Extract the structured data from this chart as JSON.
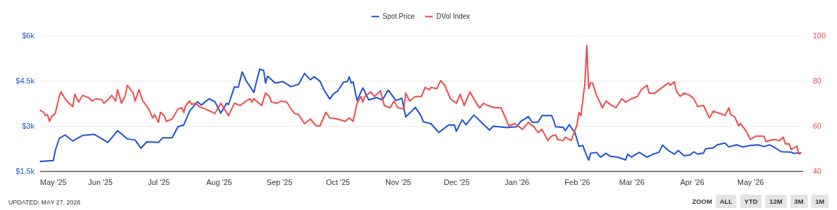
{
  "chart_data": {
    "type": "line",
    "xlim": [
      "2025-05-01",
      "2026-05-28"
    ],
    "xticks": [
      {
        "value": "2025-05-01",
        "label": "May '25"
      },
      {
        "value": "2025-06-01",
        "label": "Jun '25"
      },
      {
        "value": "2025-07-01",
        "label": "Jul '25"
      },
      {
        "value": "2025-08-01",
        "label": "Aug '25"
      },
      {
        "value": "2025-09-01",
        "label": "Sep '25"
      },
      {
        "value": "2025-10-01",
        "label": "Oct '25"
      },
      {
        "value": "2025-11-01",
        "label": "Nov '25"
      },
      {
        "value": "2025-12-01",
        "label": "Dec '25"
      },
      {
        "value": "2026-01-01",
        "label": "Jan '26"
      },
      {
        "value": "2026-02-01",
        "label": "Feb '26"
      },
      {
        "value": "2026-03-01",
        "label": "Mar '26"
      },
      {
        "value": "2026-04-01",
        "label": "Apr '26"
      },
      {
        "value": "2026-05-01",
        "label": "May '26"
      }
    ],
    "ylim": [
      1500,
      6000
    ],
    "yticks": [
      {
        "value": 1500,
        "label": "$1.5k"
      },
      {
        "value": 3000,
        "label": "$3k"
      },
      {
        "value": 4500,
        "label": "$4.5k"
      },
      {
        "value": 6000,
        "label": "$6k"
      }
    ],
    "y2lim": [
      40,
      100
    ],
    "y2ticks": [
      40,
      60,
      80,
      100
    ],
    "grid": "y",
    "legend": "top",
    "marker": "none",
    "line_style": "solid",
    "annotations": [
      "UPDATED: MAY 27, 2026",
      "ZOOM",
      "ALL",
      "YTD",
      "12M",
      "3M",
      "1M"
    ],
    "series": [
      {
        "name": "Spot Price",
        "color": "#1a4fd6",
        "x": [
          "2025-05-01",
          "2025-05-08",
          "2025-05-09",
          "2025-05-11",
          "2025-05-14",
          "2025-05-18",
          "2025-05-23",
          "2025-05-29",
          "2025-06-05",
          "2025-06-10",
          "2025-06-15",
          "2025-06-19",
          "2025-06-22",
          "2025-06-25",
          "2025-07-01",
          "2025-07-03",
          "2025-07-08",
          "2025-07-11",
          "2025-07-14",
          "2025-07-17",
          "2025-07-21",
          "2025-07-23",
          "2025-07-27",
          "2025-07-30",
          "2025-08-02",
          "2025-08-05",
          "2025-08-06",
          "2025-08-09",
          "2025-08-11",
          "2025-08-13",
          "2025-08-15",
          "2025-08-19",
          "2025-08-20",
          "2025-08-22",
          "2025-08-24",
          "2025-08-25",
          "2025-08-26",
          "2025-08-30",
          "2025-09-03",
          "2025-09-07",
          "2025-09-11",
          "2025-09-14",
          "2025-09-17",
          "2025-09-19",
          "2025-09-22",
          "2025-09-24",
          "2025-09-27",
          "2025-09-29",
          "2025-10-01",
          "2025-10-04",
          "2025-10-06",
          "2025-10-07",
          "2025-10-08",
          "2025-10-09",
          "2025-10-11",
          "2025-10-14",
          "2025-10-17",
          "2025-10-21",
          "2025-10-24",
          "2025-10-27",
          "2025-10-31",
          "2025-11-03",
          "2025-11-05",
          "2025-11-07",
          "2025-11-10",
          "2025-11-13",
          "2025-11-14",
          "2025-11-18",
          "2025-11-22",
          "2025-11-27",
          "2025-11-30",
          "2025-12-01",
          "2025-12-04",
          "2025-12-06",
          "2025-12-10",
          "2025-12-14",
          "2025-12-18",
          "2025-12-20",
          "2025-12-27",
          "2026-01-01",
          "2026-01-03",
          "2026-01-07",
          "2026-01-09",
          "2026-01-12",
          "2026-01-14",
          "2026-01-19",
          "2026-01-20",
          "2026-01-21",
          "2026-01-25",
          "2026-01-26",
          "2026-01-28",
          "2026-01-31",
          "2026-02-02",
          "2026-02-04",
          "2026-02-05",
          "2026-02-07",
          "2026-02-08",
          "2026-02-11",
          "2026-02-13",
          "2026-02-16",
          "2026-02-18",
          "2026-02-22",
          "2026-02-26",
          "2026-02-27",
          "2026-03-01",
          "2026-03-02",
          "2026-03-05",
          "2026-03-09",
          "2026-03-12",
          "2026-03-15",
          "2026-03-17",
          "2026-03-20",
          "2026-03-23",
          "2026-03-25",
          "2026-03-28",
          "2026-03-31",
          "2026-04-02",
          "2026-04-04",
          "2026-04-07",
          "2026-04-08",
          "2026-04-12",
          "2026-04-14",
          "2026-04-18",
          "2026-04-20",
          "2026-04-24",
          "2026-04-27",
          "2026-05-01",
          "2026-05-05",
          "2026-05-08",
          "2026-05-11",
          "2026-05-13",
          "2026-05-17",
          "2026-05-22",
          "2026-05-23",
          "2026-05-27"
        ],
        "values": [
          1820,
          1850,
          2180,
          2580,
          2700,
          2500,
          2680,
          2720,
          2450,
          2840,
          2570,
          2530,
          2260,
          2470,
          2450,
          2600,
          2600,
          2970,
          3030,
          3490,
          3800,
          3690,
          3900,
          3800,
          3420,
          3750,
          3710,
          4290,
          4280,
          4790,
          4500,
          4110,
          4380,
          4880,
          4840,
          4420,
          4650,
          4420,
          4470,
          4300,
          4380,
          4740,
          4530,
          4630,
          4480,
          4200,
          3890,
          4070,
          4150,
          4450,
          4470,
          4630,
          4420,
          4460,
          3840,
          4260,
          3860,
          3940,
          3860,
          4190,
          3840,
          3920,
          3300,
          3420,
          3610,
          3320,
          3140,
          3070,
          2780,
          3030,
          3030,
          2820,
          3200,
          3040,
          3360,
          3110,
          2860,
          2990,
          2940,
          2970,
          3140,
          3310,
          3120,
          3120,
          3340,
          3340,
          3180,
          2970,
          2950,
          2840,
          3040,
          2760,
          2320,
          2350,
          2160,
          1860,
          2090,
          2120,
          1960,
          2090,
          1990,
          1960,
          1870,
          2060,
          1960,
          2010,
          2120,
          1960,
          2060,
          2120,
          2360,
          2180,
          2060,
          2180,
          2010,
          2030,
          2140,
          2060,
          2100,
          2240,
          2270,
          2370,
          2430,
          2300,
          2370,
          2300,
          2350,
          2370,
          2310,
          2370,
          2300,
          2140,
          2130,
          2090,
          2100
        ]
      },
      {
        "name": "DVol Index",
        "color": "#f04848",
        "axis": "y2",
        "x": [
          "2025-05-01",
          "2025-05-03",
          "2025-05-04",
          "2025-05-05",
          "2025-05-06",
          "2025-05-07",
          "2025-05-09",
          "2025-05-11",
          "2025-05-12",
          "2025-05-14",
          "2025-05-16",
          "2025-05-18",
          "2025-05-19",
          "2025-05-21",
          "2025-05-23",
          "2025-05-26",
          "2025-05-28",
          "2025-05-30",
          "2025-06-02",
          "2025-06-03",
          "2025-06-05",
          "2025-06-07",
          "2025-06-09",
          "2025-06-10",
          "2025-06-12",
          "2025-06-14",
          "2025-06-15",
          "2025-06-18",
          "2025-06-19",
          "2025-06-21",
          "2025-06-23",
          "2025-06-26",
          "2025-06-28",
          "2025-06-29",
          "2025-07-01",
          "2025-07-02",
          "2025-07-04",
          "2025-07-05",
          "2025-07-08",
          "2025-07-11",
          "2025-07-13",
          "2025-07-14",
          "2025-07-15",
          "2025-07-17",
          "2025-07-18",
          "2025-07-20",
          "2025-07-22",
          "2025-07-25",
          "2025-07-30",
          "2025-08-02",
          "2025-08-06",
          "2025-08-09",
          "2025-08-12",
          "2025-08-15",
          "2025-08-17",
          "2025-08-18",
          "2025-08-19",
          "2025-08-23",
          "2025-08-25",
          "2025-08-27",
          "2025-08-28",
          "2025-08-31",
          "2025-09-02",
          "2025-09-05",
          "2025-09-07",
          "2025-09-09",
          "2025-09-11",
          "2025-09-14",
          "2025-09-17",
          "2025-09-20",
          "2025-09-22",
          "2025-09-24",
          "2025-09-25",
          "2025-09-27",
          "2025-10-01",
          "2025-10-05",
          "2025-10-07",
          "2025-10-09",
          "2025-10-11",
          "2025-10-13",
          "2025-10-14",
          "2025-10-15",
          "2025-10-18",
          "2025-10-20",
          "2025-10-23",
          "2025-10-25",
          "2025-10-28",
          "2025-10-30",
          "2025-11-01",
          "2025-11-04",
          "2025-11-05",
          "2025-11-07",
          "2025-11-10",
          "2025-11-13",
          "2025-11-15",
          "2025-11-17",
          "2025-11-18",
          "2025-11-21",
          "2025-11-23",
          "2025-11-25",
          "2025-11-28",
          "2025-12-01",
          "2025-12-03",
          "2025-12-05",
          "2025-12-07",
          "2025-12-08",
          "2025-12-12",
          "2025-12-13",
          "2025-12-15",
          "2025-12-17",
          "2025-12-21",
          "2025-12-24",
          "2025-12-28",
          "2025-12-31",
          "2026-01-04",
          "2026-01-07",
          "2026-01-10",
          "2026-01-12",
          "2026-01-14",
          "2026-01-17",
          "2026-01-19",
          "2026-01-21",
          "2026-01-22",
          "2026-01-25",
          "2026-01-26",
          "2026-01-29",
          "2026-02-01",
          "2026-02-02",
          "2026-02-03",
          "2026-02-05",
          "2026-02-06",
          "2026-02-07",
          "2026-02-08",
          "2026-02-09",
          "2026-02-11",
          "2026-02-13",
          "2026-02-14",
          "2026-02-16",
          "2026-02-18",
          "2026-02-21",
          "2026-02-24",
          "2026-02-26",
          "2026-03-01",
          "2026-03-04",
          "2026-03-06",
          "2026-03-09",
          "2026-03-10",
          "2026-03-13",
          "2026-03-16",
          "2026-03-20",
          "2026-03-21",
          "2026-03-23",
          "2026-03-24",
          "2026-03-26",
          "2026-03-28",
          "2026-03-31",
          "2026-04-02",
          "2026-04-04",
          "2026-04-07",
          "2026-04-10",
          "2026-04-12",
          "2026-04-17",
          "2026-04-18",
          "2026-04-20",
          "2026-04-21",
          "2026-04-23",
          "2026-04-25",
          "2026-04-26",
          "2026-04-29",
          "2026-05-01",
          "2026-05-04",
          "2026-05-08",
          "2026-05-09",
          "2026-05-13",
          "2026-05-16",
          "2026-05-18",
          "2026-05-19",
          "2026-05-21",
          "2026-05-22",
          "2026-05-25",
          "2026-05-26",
          "2026-05-27"
        ],
        "values": [
          67,
          66,
          64.5,
          65,
          62,
          64,
          65.5,
          73,
          75,
          72,
          70,
          68.5,
          74,
          70.5,
          73.5,
          72.5,
          71,
          72,
          71.5,
          70,
          71.5,
          73.5,
          71,
          76,
          70,
          73.5,
          78,
          74.5,
          71,
          76,
          71,
          67.5,
          63.5,
          65,
          61.5,
          66,
          64.5,
          62,
          63,
          67.5,
          68,
          66,
          69,
          71,
          69.5,
          70,
          68.5,
          67.5,
          65.5,
          70,
          64.5,
          70,
          69,
          71,
          72,
          70.5,
          72,
          69,
          74.5,
          73,
          70.5,
          70,
          71,
          70.5,
          67.5,
          65.5,
          65,
          61,
          63,
          60,
          60,
          64,
          66,
          63.5,
          63,
          62,
          63.5,
          62,
          70,
          73,
          70.5,
          73,
          75,
          73,
          75.5,
          69,
          68,
          71,
          68,
          67.5,
          74.5,
          71,
          73,
          73,
          77,
          76,
          77,
          76.5,
          80,
          78,
          72,
          70,
          74,
          69,
          73,
          75,
          69,
          68,
          70,
          69,
          68,
          68,
          60,
          61,
          58.5,
          61.5,
          59.5,
          57,
          58.5,
          53.5,
          55.5,
          56,
          54,
          53.5,
          55,
          53.5,
          60.5,
          66,
          64.5,
          78.5,
          95.5,
          76.5,
          79,
          79,
          73.5,
          70,
          68,
          71,
          69.5,
          68,
          72,
          70.5,
          72,
          73,
          76,
          78,
          74.5,
          74.5,
          76.5,
          79,
          78,
          79.5,
          75.5,
          73,
          74.5,
          73.5,
          72,
          68.5,
          69,
          63.5,
          66.5,
          65,
          64.5,
          68,
          65,
          64,
          60,
          61,
          57.5,
          54,
          55.5,
          55.5,
          53,
          54,
          53.5,
          55,
          52,
          52,
          49.5,
          51,
          47.5,
          48
        ]
      }
    ]
  }
}
